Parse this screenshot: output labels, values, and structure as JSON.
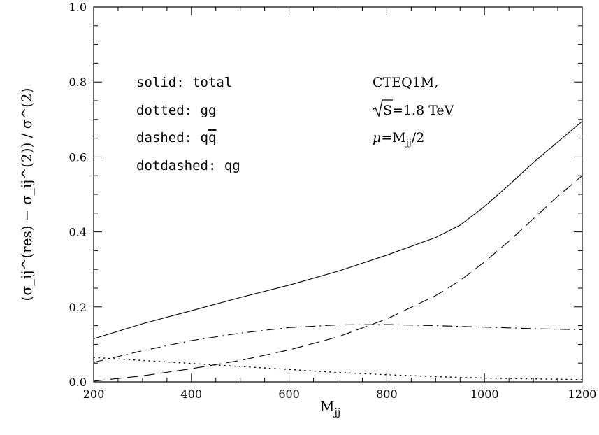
{
  "chart_data": {
    "type": "line",
    "xlabel": "M",
    "xlabel_sub": "jj",
    "ylabel": "(σ_ij^(res) − σ_ij^(2)) / σ^(2)",
    "xlim": [
      200,
      1200
    ],
    "ylim": [
      0.0,
      1.0
    ],
    "x_ticks": [
      "200",
      "400",
      "600",
      "800",
      "1000",
      "1200"
    ],
    "y_ticks": [
      "0.0",
      "0.2",
      "0.4",
      "0.6",
      "0.8",
      "1.0"
    ],
    "legend": [
      "solid: total",
      "dotted: gg",
      "dashed: q",
      "dotdashed: qg"
    ],
    "legend_dashed_suffix": "q",
    "info": {
      "pdf": "CTEQ1M,",
      "sqrt_s": "S=1.8 TeV",
      "mu_symbol": "μ",
      "mu_value": "=M",
      "mu_sub": "jj",
      "mu_tail": "/2"
    },
    "series": [
      {
        "style": "solid",
        "x": [
          200,
          300,
          400,
          500,
          600,
          700,
          800,
          900,
          950,
          1000,
          1050,
          1100,
          1150,
          1200
        ],
        "y": [
          0.115,
          0.155,
          0.19,
          0.225,
          0.258,
          0.295,
          0.338,
          0.385,
          0.418,
          0.468,
          0.525,
          0.585,
          0.64,
          0.695
        ]
      },
      {
        "style": "dotted",
        "x": [
          200,
          300,
          400,
          500,
          600,
          700,
          800,
          900,
          1000,
          1100,
          1200
        ],
        "y": [
          0.065,
          0.057,
          0.049,
          0.041,
          0.033,
          0.025,
          0.019,
          0.014,
          0.01,
          0.008,
          0.006
        ]
      },
      {
        "style": "dashed",
        "x": [
          200,
          300,
          400,
          500,
          600,
          700,
          800,
          900,
          950,
          1000,
          1050,
          1100,
          1150,
          1200
        ],
        "y": [
          0.002,
          0.016,
          0.035,
          0.057,
          0.085,
          0.12,
          0.168,
          0.23,
          0.27,
          0.32,
          0.375,
          0.435,
          0.495,
          0.55
        ]
      },
      {
        "style": "dotdashed",
        "x": [
          200,
          300,
          400,
          500,
          600,
          700,
          800,
          900,
          1000,
          1100,
          1200
        ],
        "y": [
          0.052,
          0.083,
          0.11,
          0.13,
          0.145,
          0.152,
          0.153,
          0.15,
          0.146,
          0.142,
          0.139
        ]
      }
    ]
  }
}
